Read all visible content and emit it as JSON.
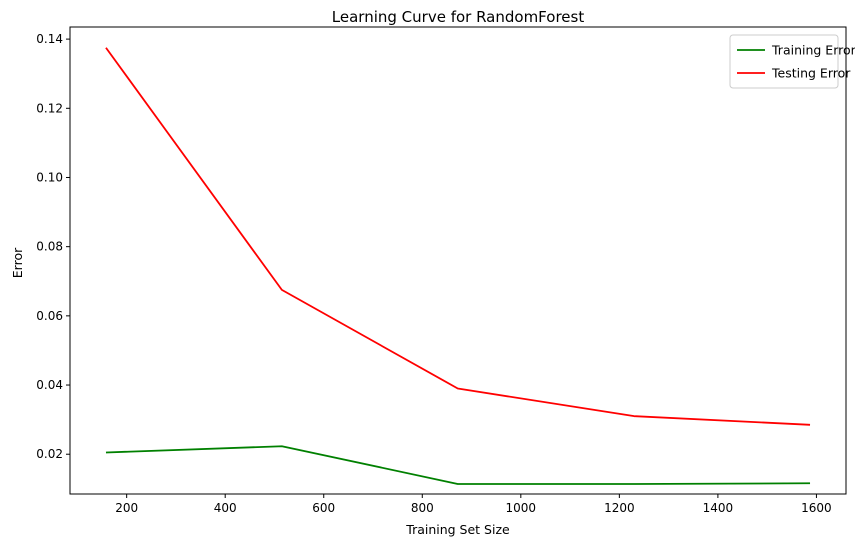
{
  "chart_data": {
    "type": "line",
    "title": "Learning Curve for RandomForest",
    "xlabel": "Training Set Size",
    "ylabel": "Error",
    "xlim": [
      85,
      1660
    ],
    "ylim": [
      0.0085,
      0.1435
    ],
    "xticks": [
      200,
      400,
      600,
      800,
      1000,
      1200,
      1400,
      1600
    ],
    "xtick_labels": [
      "200",
      "400",
      "600",
      "800",
      "1000",
      "1200",
      "1400",
      "1600"
    ],
    "yticks": [
      0.02,
      0.04,
      0.06,
      0.08,
      0.1,
      0.12,
      0.14
    ],
    "ytick_labels": [
      "0.02",
      "0.04",
      "0.06",
      "0.08",
      "0.10",
      "0.12",
      "0.14"
    ],
    "grid": false,
    "legend_position": "top-right",
    "x": [
      158,
      515,
      872,
      1230,
      1587
    ],
    "series": [
      {
        "name": "Training Error",
        "color": "#008000",
        "values": [
          0.0205,
          0.0223,
          0.0114,
          0.0114,
          0.0116
        ]
      },
      {
        "name": "Testing Error",
        "color": "#ff0000",
        "values": [
          0.1375,
          0.0675,
          0.039,
          0.031,
          0.0285
        ]
      }
    ]
  }
}
